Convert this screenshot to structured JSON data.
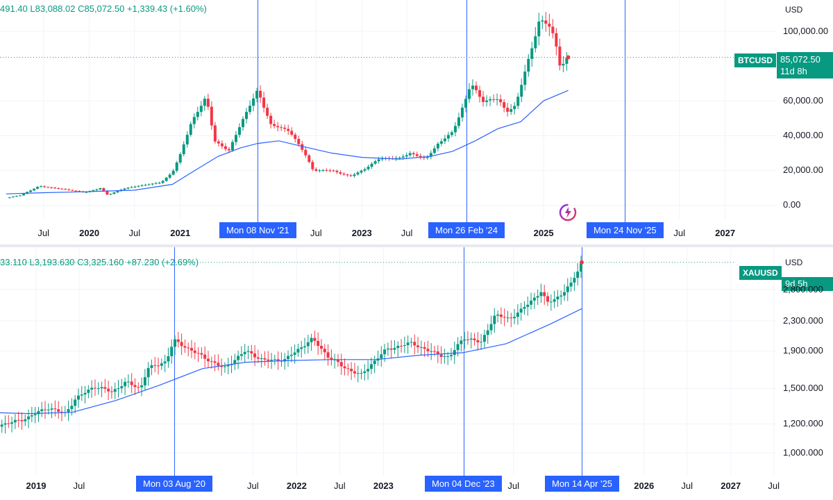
{
  "colors": {
    "up": "#089981",
    "down": "#f23645",
    "ma": "#2962ff",
    "vline": "#2962ff",
    "grid": "#f0f3fa"
  },
  "icons": {
    "assistant": "sparkle-ai-icon"
  },
  "chart_data": [
    {
      "type": "candlestick",
      "symbol": "BTCUSD",
      "currency": "USD",
      "header": {
        "high": "491.40",
        "low": "L83,088.02",
        "close": "C85,072.50",
        "change": "+1,339.43 (+1.60%)"
      },
      "last_price": "85,072.50",
      "countdown": "11d 8h",
      "yscale": "linear",
      "ylim": [
        -5000,
        118000
      ],
      "y_ticks": [
        {
          "value": 0,
          "label": "0.00"
        },
        {
          "value": 20000,
          "label": "20,000.00"
        },
        {
          "value": 40000,
          "label": "40,000.00"
        },
        {
          "value": 60000,
          "label": "60,000.00"
        },
        {
          "value": 100000,
          "label": "100,000.00"
        }
      ],
      "x_ticks": [
        {
          "date": "2019-07-01",
          "label": "Jul",
          "major": false
        },
        {
          "date": "2020-01-01",
          "label": "2020",
          "major": true
        },
        {
          "date": "2020-07-01",
          "label": "Jul",
          "major": false
        },
        {
          "date": "2021-01-01",
          "label": "2021",
          "major": true
        },
        {
          "date": "2022-07-01",
          "label": "Jul",
          "major": false
        },
        {
          "date": "2023-01-01",
          "label": "2023",
          "major": true
        },
        {
          "date": "2023-07-01",
          "label": "Jul",
          "major": false
        },
        {
          "date": "2025-01-01",
          "label": "2025",
          "major": true
        },
        {
          "date": "2026-07-01",
          "label": "Jul",
          "major": false
        },
        {
          "date": "2027-01-01",
          "label": "2027",
          "major": true
        }
      ],
      "vlines": [
        {
          "date": "2021-11-08",
          "label": "Mon 08 Nov '21"
        },
        {
          "date": "2024-02-26",
          "label": "Mon 26 Feb '24"
        },
        {
          "date": "2025-11-24",
          "label": "Mon 24 Nov '25"
        }
      ],
      "close_series": [
        [
          "2019-02-01",
          4100
        ],
        [
          "2019-04-01",
          5800
        ],
        [
          "2019-06-15",
          11000
        ],
        [
          "2019-08-01",
          10000
        ],
        [
          "2019-10-01",
          9000
        ],
        [
          "2019-12-15",
          7300
        ],
        [
          "2020-02-15",
          9800
        ],
        [
          "2020-03-15",
          5800
        ],
        [
          "2020-05-15",
          9400
        ],
        [
          "2020-08-01",
          11500
        ],
        [
          "2020-10-15",
          13000
        ],
        [
          "2020-12-01",
          19000
        ],
        [
          "2021-01-01",
          29000
        ],
        [
          "2021-02-15",
          48000
        ],
        [
          "2021-04-15",
          62000
        ],
        [
          "2021-05-20",
          37000
        ],
        [
          "2021-07-15",
          31000
        ],
        [
          "2021-09-01",
          47000
        ],
        [
          "2021-11-08",
          66000
        ],
        [
          "2022-01-01",
          46000
        ],
        [
          "2022-03-15",
          43000
        ],
        [
          "2022-05-15",
          30000
        ],
        [
          "2022-06-20",
          20000
        ],
        [
          "2022-09-01",
          20000
        ],
        [
          "2022-11-15",
          16500
        ],
        [
          "2023-01-15",
          21000
        ],
        [
          "2023-03-15",
          27000
        ],
        [
          "2023-06-01",
          27000
        ],
        [
          "2023-07-15",
          30000
        ],
        [
          "2023-09-15",
          26500
        ],
        [
          "2023-11-01",
          35000
        ],
        [
          "2024-01-01",
          42000
        ],
        [
          "2024-02-26",
          62000
        ],
        [
          "2024-03-15",
          70000
        ],
        [
          "2024-05-01",
          60000
        ],
        [
          "2024-07-01",
          61000
        ],
        [
          "2024-08-05",
          54000
        ],
        [
          "2024-09-10",
          57000
        ],
        [
          "2024-11-15",
          91000
        ],
        [
          "2024-12-15",
          106000
        ],
        [
          "2025-01-20",
          104000
        ],
        [
          "2025-02-15",
          96000
        ],
        [
          "2025-03-10",
          79000
        ],
        [
          "2025-04-10",
          85072
        ]
      ],
      "ma_series": [
        [
          "2019-02-01",
          6500
        ],
        [
          "2019-07-01",
          7200
        ],
        [
          "2020-01-01",
          7800
        ],
        [
          "2020-07-01",
          8600
        ],
        [
          "2020-12-01",
          12000
        ],
        [
          "2021-03-01",
          20000
        ],
        [
          "2021-06-01",
          28000
        ],
        [
          "2021-09-01",
          33000
        ],
        [
          "2021-11-08",
          35500
        ],
        [
          "2022-02-01",
          37000
        ],
        [
          "2022-05-01",
          34000
        ],
        [
          "2022-09-01",
          30000
        ],
        [
          "2023-01-01",
          27500
        ],
        [
          "2023-06-01",
          26500
        ],
        [
          "2023-10-01",
          28000
        ],
        [
          "2024-01-01",
          31000
        ],
        [
          "2024-04-01",
          37000
        ],
        [
          "2024-07-01",
          44000
        ],
        [
          "2024-10-01",
          48000
        ],
        [
          "2025-01-01",
          60000
        ],
        [
          "2025-04-10",
          66000
        ]
      ]
    },
    {
      "type": "candlestick",
      "symbol": "XAUUSD",
      "currency": "USD",
      "header": {
        "high": "33.110",
        "low": "L3,193.630",
        "close": "C3,325.160",
        "change": "+87.230 (+2.69%)"
      },
      "countdown": "9d 5h",
      "yscale": "log",
      "ylim": [
        900,
        3500
      ],
      "y_ticks": [
        {
          "value": 1000,
          "label": "1,000.000"
        },
        {
          "value": 1200,
          "label": "1,200.000"
        },
        {
          "value": 1500,
          "label": "1,500.000"
        },
        {
          "value": 1900,
          "label": "1,900.000"
        },
        {
          "value": 2300,
          "label": "2,300.000"
        },
        {
          "value": 2800,
          "label": "2,800.000"
        }
      ],
      "x_ticks": [
        {
          "date": "2019-01-01",
          "label": "2019",
          "major": true
        },
        {
          "date": "2019-07-01",
          "label": "Jul",
          "major": false
        },
        {
          "date": "2021-07-01",
          "label": "Jul",
          "major": false
        },
        {
          "date": "2022-01-01",
          "label": "2022",
          "major": true
        },
        {
          "date": "2022-07-01",
          "label": "Jul",
          "major": false
        },
        {
          "date": "2023-01-01",
          "label": "2023",
          "major": true
        },
        {
          "date": "2024-07-01",
          "label": "Jul",
          "major": false
        },
        {
          "date": "2026-01-01",
          "label": "2026",
          "major": true
        },
        {
          "date": "2026-07-01",
          "label": "Jul",
          "major": false
        },
        {
          "date": "2027-01-01",
          "label": "2027",
          "major": true
        },
        {
          "date": "2027-07-01",
          "label": "Jul",
          "major": false
        }
      ],
      "vlines": [
        {
          "date": "2020-08-03",
          "label": "Mon 03 Aug '20"
        },
        {
          "date": "2023-12-04",
          "label": "Mon 04 Dec '23"
        },
        {
          "date": "2025-04-14",
          "label": "Mon 14 Apr '25"
        }
      ],
      "close_series": [
        [
          "2018-06-01",
          1180
        ],
        [
          "2018-09-01",
          1200
        ],
        [
          "2018-12-01",
          1250
        ],
        [
          "2019-02-15",
          1330
        ],
        [
          "2019-05-01",
          1280
        ],
        [
          "2019-06-15",
          1400
        ],
        [
          "2019-09-01",
          1520
        ],
        [
          "2019-11-15",
          1470
        ],
        [
          "2020-01-15",
          1560
        ],
        [
          "2020-03-15",
          1500
        ],
        [
          "2020-04-15",
          1700
        ],
        [
          "2020-07-01",
          1780
        ],
        [
          "2020-08-03",
          2030
        ],
        [
          "2020-11-01",
          1880
        ],
        [
          "2021-03-01",
          1700
        ],
        [
          "2021-06-01",
          1900
        ],
        [
          "2021-08-15",
          1790
        ],
        [
          "2021-11-15",
          1800
        ],
        [
          "2022-03-08",
          2050
        ],
        [
          "2022-05-15",
          1830
        ],
        [
          "2022-07-15",
          1720
        ],
        [
          "2022-09-28",
          1630
        ],
        [
          "2022-11-15",
          1760
        ],
        [
          "2023-01-15",
          1920
        ],
        [
          "2023-05-01",
          2000
        ],
        [
          "2023-06-30",
          1910
        ],
        [
          "2023-10-05",
          1820
        ],
        [
          "2023-12-04",
          2070
        ],
        [
          "2024-02-15",
          2000
        ],
        [
          "2024-04-15",
          2380
        ],
        [
          "2024-06-15",
          2330
        ],
        [
          "2024-08-01",
          2450
        ],
        [
          "2024-10-30",
          2780
        ],
        [
          "2024-11-15",
          2560
        ],
        [
          "2025-01-15",
          2700
        ],
        [
          "2025-03-01",
          2900
        ],
        [
          "2025-04-14",
          3325
        ]
      ],
      "ma_series": [
        [
          "2018-06-01",
          1290
        ],
        [
          "2018-12-01",
          1280
        ],
        [
          "2019-06-01",
          1290
        ],
        [
          "2019-12-01",
          1390
        ],
        [
          "2020-06-01",
          1530
        ],
        [
          "2020-12-01",
          1700
        ],
        [
          "2021-06-01",
          1770
        ],
        [
          "2021-12-01",
          1790
        ],
        [
          "2022-06-01",
          1800
        ],
        [
          "2022-12-01",
          1800
        ],
        [
          "2023-06-01",
          1850
        ],
        [
          "2023-12-01",
          1880
        ],
        [
          "2024-06-01",
          1990
        ],
        [
          "2024-12-01",
          2250
        ],
        [
          "2025-04-14",
          2480
        ]
      ]
    }
  ]
}
